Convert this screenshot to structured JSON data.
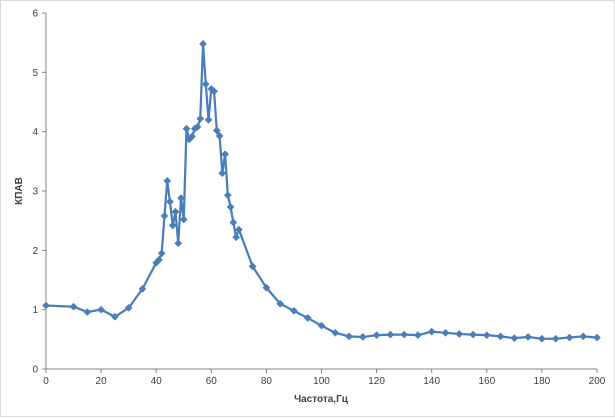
{
  "chart_data": {
    "type": "line",
    "title": "",
    "xlabel": "Частота,Гц",
    "ylabel": "КПАВ",
    "xlim": [
      0,
      200
    ],
    "ylim": [
      0,
      6
    ],
    "xticks": [
      0,
      20,
      40,
      60,
      80,
      100,
      120,
      140,
      160,
      180,
      200
    ],
    "yticks": [
      0,
      1,
      2,
      3,
      4,
      5,
      6
    ],
    "grid": false,
    "legend": "none",
    "series": [
      {
        "color": "#4a7ebb",
        "marker": "diamond",
        "points": [
          [
            0,
            1.07
          ],
          [
            10,
            1.05
          ],
          [
            15,
            0.96
          ],
          [
            20,
            1.0
          ],
          [
            25,
            0.88
          ],
          [
            30,
            1.03
          ],
          [
            35,
            1.35
          ],
          [
            40,
            1.79
          ],
          [
            41,
            1.84
          ],
          [
            42,
            1.95
          ],
          [
            43,
            2.58
          ],
          [
            44,
            3.17
          ],
          [
            45,
            2.82
          ],
          [
            46,
            2.42
          ],
          [
            47,
            2.65
          ],
          [
            48,
            2.12
          ],
          [
            49,
            2.88
          ],
          [
            50,
            2.52
          ],
          [
            51,
            4.05
          ],
          [
            52,
            3.87
          ],
          [
            53,
            3.92
          ],
          [
            54,
            4.05
          ],
          [
            55,
            4.08
          ],
          [
            56,
            4.22
          ],
          [
            57,
            5.48
          ],
          [
            58,
            4.8
          ],
          [
            59,
            4.2
          ],
          [
            60,
            4.72
          ],
          [
            61,
            4.68
          ],
          [
            62,
            4.02
          ],
          [
            63,
            3.93
          ],
          [
            64,
            3.3
          ],
          [
            65,
            3.62
          ],
          [
            66,
            2.93
          ],
          [
            67,
            2.73
          ],
          [
            68,
            2.47
          ],
          [
            69,
            2.22
          ],
          [
            70,
            2.35
          ],
          [
            75,
            1.73
          ],
          [
            80,
            1.37
          ],
          [
            85,
            1.1
          ],
          [
            90,
            0.98
          ],
          [
            95,
            0.86
          ],
          [
            100,
            0.73
          ],
          [
            105,
            0.61
          ],
          [
            110,
            0.55
          ],
          [
            115,
            0.54
          ],
          [
            120,
            0.57
          ],
          [
            125,
            0.58
          ],
          [
            130,
            0.58
          ],
          [
            135,
            0.57
          ],
          [
            140,
            0.63
          ],
          [
            145,
            0.61
          ],
          [
            150,
            0.59
          ],
          [
            155,
            0.58
          ],
          [
            160,
            0.57
          ],
          [
            165,
            0.55
          ],
          [
            170,
            0.52
          ],
          [
            175,
            0.54
          ],
          [
            180,
            0.51
          ],
          [
            185,
            0.51
          ],
          [
            190,
            0.53
          ],
          [
            195,
            0.55
          ],
          [
            200,
            0.53
          ]
        ]
      }
    ]
  }
}
